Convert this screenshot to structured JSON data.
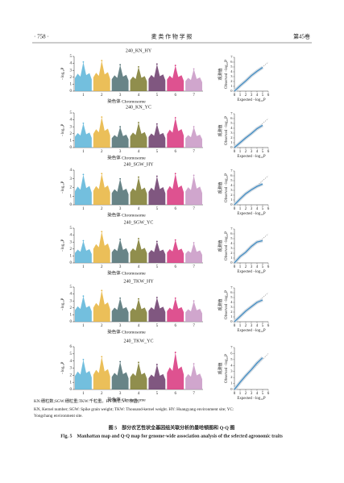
{
  "header": {
    "page": "· 758 ·",
    "journal": "麦 类 作 物 学 报",
    "volume": "第45卷"
  },
  "chart_data": [
    {
      "type": "manhattan",
      "title": "240_KN_HY",
      "xlabel": "染色体 Chromosome",
      "ylabel": "−log₁₀P",
      "categories": [
        "1",
        "2",
        "3",
        "4",
        "5",
        "6",
        "7"
      ],
      "colors": [
        "#5ab4d8",
        "#e8b43c",
        "#4e6e72",
        "#7c7a2e",
        "#6a3a6a",
        "#d8347c",
        "#c896c4"
      ],
      "values": [
        4.2,
        4.4,
        3.8,
        3.5,
        3.9,
        3.7,
        3.2
      ],
      "ylim": [
        0,
        5
      ],
      "yticks": [
        0,
        1,
        2,
        3,
        4,
        5
      ]
    },
    {
      "type": "qq",
      "ylabel_cn": "观测值",
      "ylabel": "Observed −log₁₀P",
      "xlabel": "Expected −log₁₀P",
      "x": [
        0,
        1,
        2,
        3,
        4,
        5
      ],
      "values": [
        0,
        1.1,
        2.1,
        3.2,
        4.1,
        4.9
      ],
      "color": "#3a8ac4",
      "xlim": [
        0,
        6
      ],
      "xticks": [
        0,
        1,
        2,
        3,
        4,
        5,
        6
      ],
      "ylim": [
        0,
        7
      ],
      "yticks": [
        0,
        1,
        2,
        3,
        4,
        5,
        6,
        7
      ]
    },
    {
      "type": "manhattan",
      "title": "240_KN_YC",
      "xlabel": "染色体 Chromosome",
      "ylabel": "−log₁₀P",
      "categories": [
        "1",
        "2",
        "3",
        "4",
        "5",
        "6",
        "7"
      ],
      "colors": [
        "#5ab4d8",
        "#e8b43c",
        "#4e6e72",
        "#7c7a2e",
        "#6a3a6a",
        "#d8347c",
        "#c896c4"
      ],
      "values": [
        3.5,
        4.4,
        3.0,
        3.6,
        3.4,
        4.3,
        3.0
      ],
      "ylim": [
        0,
        5
      ],
      "yticks": [
        0,
        1,
        2,
        3,
        4,
        5
      ]
    },
    {
      "type": "qq",
      "ylabel_cn": "观测值",
      "ylabel": "Observed −log₁₀P",
      "xlabel": "Expected −log₁₀P",
      "x": [
        0,
        1,
        2,
        3,
        4,
        5
      ],
      "values": [
        0,
        1.0,
        2.0,
        2.9,
        3.9,
        4.6
      ],
      "color": "#3a8ac4",
      "xlim": [
        0,
        6
      ],
      "xticks": [
        0,
        1,
        2,
        3,
        4,
        5,
        6
      ],
      "ylim": [
        0,
        7
      ],
      "yticks": [
        0,
        1,
        2,
        3,
        4,
        5,
        6,
        7
      ]
    },
    {
      "type": "manhattan",
      "title": "240_SGW_HY",
      "xlabel": "染色体 Chromosome",
      "ylabel": "−log₁₀P",
      "categories": [
        "1",
        "2",
        "3",
        "4",
        "5",
        "6",
        "7"
      ],
      "colors": [
        "#5ab4d8",
        "#e8b43c",
        "#4e6e72",
        "#7c7a2e",
        "#6a3a6a",
        "#d8347c",
        "#c896c4"
      ],
      "values": [
        3.5,
        3.6,
        3.0,
        3.2,
        3.3,
        3.6,
        3.4
      ],
      "ylim": [
        0,
        4
      ],
      "yticks": [
        0,
        1,
        2,
        3,
        4
      ]
    },
    {
      "type": "qq",
      "ylabel_cn": "观测值",
      "ylabel": "Observed −log₁₀P",
      "xlabel": "Expected −log₁₀P",
      "x": [
        0,
        1,
        2,
        3,
        4,
        5
      ],
      "values": [
        0,
        1.2,
        2.3,
        3.1,
        3.8,
        4.3
      ],
      "color": "#3a8ac4",
      "xlim": [
        0,
        6
      ],
      "xticks": [
        0,
        1,
        2,
        3,
        4,
        5,
        6
      ],
      "ylim": [
        0,
        7
      ],
      "yticks": [
        0,
        1,
        2,
        3,
        4,
        5,
        6,
        7
      ]
    },
    {
      "type": "manhattan",
      "title": "240_SGW_YC",
      "xlabel": "染色体 Chromosome",
      "ylabel": "−log₁₀P",
      "categories": [
        "1",
        "2",
        "3",
        "4",
        "5",
        "6",
        "7"
      ],
      "colors": [
        "#5ab4d8",
        "#e8b43c",
        "#4e6e72",
        "#7c7a2e",
        "#6a3a6a",
        "#d8347c",
        "#c896c4"
      ],
      "values": [
        3.2,
        4.5,
        3.4,
        3.5,
        3.1,
        3.3,
        2.9
      ],
      "ylim": [
        0,
        5
      ],
      "yticks": [
        0,
        1,
        2,
        3,
        4,
        5
      ]
    },
    {
      "type": "qq",
      "ylabel_cn": "观测值",
      "ylabel": "Observed −log₁₀P",
      "xlabel": "Expected −log₁₀P",
      "x": [
        0,
        1,
        2,
        3,
        4,
        5
      ],
      "values": [
        0,
        1.3,
        2.2,
        3.4,
        4.3,
        4.6
      ],
      "color": "#3a8ac4",
      "xlim": [
        0,
        6
      ],
      "xticks": [
        0,
        1,
        2,
        3,
        4,
        5,
        6
      ],
      "ylim": [
        0,
        7
      ],
      "yticks": [
        0,
        1,
        2,
        3,
        4,
        5,
        6,
        7
      ]
    },
    {
      "type": "manhattan",
      "title": "240_TKW_HY",
      "xlabel": "染色体 Chromosome",
      "ylabel": "−log₁₀P",
      "categories": [
        "1",
        "2",
        "3",
        "4",
        "5",
        "6",
        "7"
      ],
      "colors": [
        "#5ab4d8",
        "#e8b43c",
        "#4e6e72",
        "#7c7a2e",
        "#6a3a6a",
        "#d8347c",
        "#c896c4"
      ],
      "values": [
        3.7,
        4.5,
        3.4,
        3.3,
        3.5,
        3.4,
        3.0
      ],
      "ylim": [
        0,
        5
      ],
      "yticks": [
        0,
        1,
        2,
        3,
        4,
        5
      ]
    },
    {
      "type": "qq",
      "ylabel_cn": "观测值",
      "ylabel": "Observed −log₁₀P",
      "xlabel": "Expected −log₁₀P",
      "x": [
        0,
        1,
        2,
        3,
        4,
        5
      ],
      "values": [
        0,
        1.1,
        2.2,
        3.1,
        4.0,
        4.5
      ],
      "color": "#3a8ac4",
      "xlim": [
        0,
        6
      ],
      "xticks": [
        0,
        1,
        2,
        3,
        4,
        5,
        6
      ],
      "ylim": [
        0,
        7
      ],
      "yticks": [
        0,
        1,
        2,
        3,
        4,
        5,
        6,
        7
      ]
    },
    {
      "type": "manhattan",
      "title": "240_TKW_YC",
      "xlabel": "染色体 Chromosome",
      "ylabel": "−log₁₀P",
      "categories": [
        "1",
        "2",
        "3",
        "4",
        "5",
        "6",
        "7"
      ],
      "colors": [
        "#5ab4d8",
        "#e8b43c",
        "#4e6e72",
        "#7c7a2e",
        "#6a3a6a",
        "#d8347c",
        "#c896c4"
      ],
      "values": [
        4.2,
        4.6,
        3.9,
        3.8,
        3.5,
        5.2,
        3.6
      ],
      "ylim": [
        0,
        6
      ],
      "yticks": [
        0,
        1,
        2,
        3,
        4,
        5,
        6
      ]
    },
    {
      "type": "qq",
      "ylabel_cn": "观测值",
      "ylabel": "Observed −log₁₀P",
      "xlabel": "Expected −log₁₀P",
      "x": [
        0,
        1,
        2,
        3,
        4,
        5
      ],
      "values": [
        0,
        1.2,
        2.3,
        3.3,
        4.4,
        5.3
      ],
      "color": "#3a8ac4",
      "xlim": [
        0,
        6
      ],
      "xticks": [
        0,
        1,
        2,
        3,
        4,
        5,
        6
      ],
      "ylim": [
        0,
        7
      ],
      "yticks": [
        0,
        1,
        2,
        3,
        4,
        5,
        6,
        7
      ]
    }
  ],
  "notes": [
    "KN:穗粒数;SGW:穗粒重;TKW:千粒重。HY:黄羊;YC:永昌。",
    "KN, Kernel number; SGW: Spike grain weight; TKW: Thousand-kernel weight. HY: Huangyang environment site; YC:",
    "Yongchang environment site."
  ],
  "caption": {
    "cn": "图 5　部分农艺性状全基因组关联分析的曼哈顿图和 Q-Q 图",
    "en": "Fig. 5　Manhattan map and Q-Q map for genome-wide association analysis of the selected agronomic traits"
  }
}
